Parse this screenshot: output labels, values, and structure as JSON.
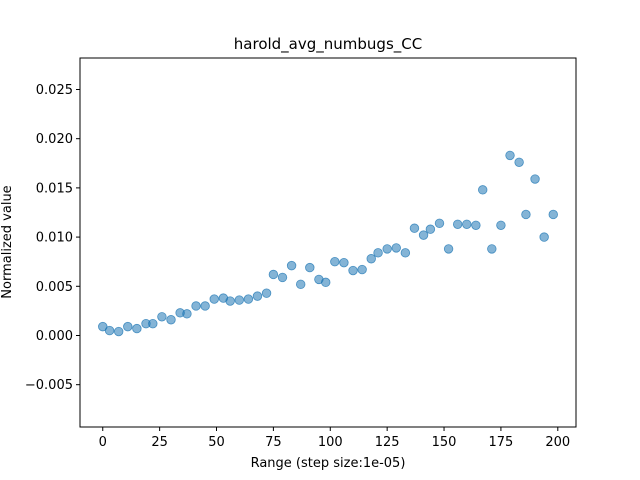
{
  "chart_data": {
    "type": "scatter",
    "title": "harold_avg_numbugs_CC",
    "xlabel": "Range (step size:1e-05)",
    "ylabel": "Normalized value",
    "xlim": [
      -10,
      208
    ],
    "ylim": [
      -0.0093,
      0.0282
    ],
    "xticks": [
      0,
      25,
      50,
      75,
      100,
      125,
      150,
      175,
      200
    ],
    "yticks": [
      -0.005,
      0.0,
      0.005,
      0.01,
      0.015,
      0.02,
      0.025
    ],
    "xtick_labels": [
      "0",
      "25",
      "50",
      "75",
      "100",
      "125",
      "150",
      "175",
      "200"
    ],
    "ytick_labels": [
      "−0.005",
      "0.000",
      "0.005",
      "0.010",
      "0.015",
      "0.020",
      "0.025"
    ],
    "grid": false,
    "marker_color": "#1f77b4",
    "marker_alpha": 0.55,
    "series": [
      {
        "x": [
          0,
          3,
          7,
          11,
          15,
          19,
          22,
          26,
          30,
          34,
          37,
          41,
          45,
          49,
          53,
          56,
          60,
          64,
          68,
          72,
          75,
          79,
          83,
          87,
          91,
          95,
          98,
          102,
          106,
          110,
          114,
          118,
          121,
          125,
          129,
          133,
          137,
          141,
          144,
          148,
          152,
          156,
          160,
          164,
          167,
          171,
          175,
          179,
          183,
          186,
          190,
          194,
          198
        ],
        "y": [
          0.0009,
          0.0005,
          0.0004,
          0.0009,
          0.0007,
          0.0012,
          0.0012,
          0.0019,
          0.0016,
          0.0023,
          0.0022,
          0.003,
          0.003,
          0.0037,
          0.0038,
          0.0035,
          0.0036,
          0.0037,
          0.004,
          0.0043,
          0.0062,
          0.0059,
          0.0071,
          0.0052,
          0.0069,
          0.0057,
          0.0054,
          0.0075,
          0.0074,
          0.0066,
          0.0067,
          0.0078,
          0.0084,
          0.0088,
          0.0089,
          0.0084,
          0.0109,
          0.0102,
          0.0108,
          0.0114,
          0.0088,
          0.0113,
          0.0113,
          0.0112,
          0.0148,
          0.0088,
          0.0112,
          0.0183,
          0.0176,
          0.0123,
          0.0159,
          0.01,
          0.0123
        ]
      }
    ]
  }
}
